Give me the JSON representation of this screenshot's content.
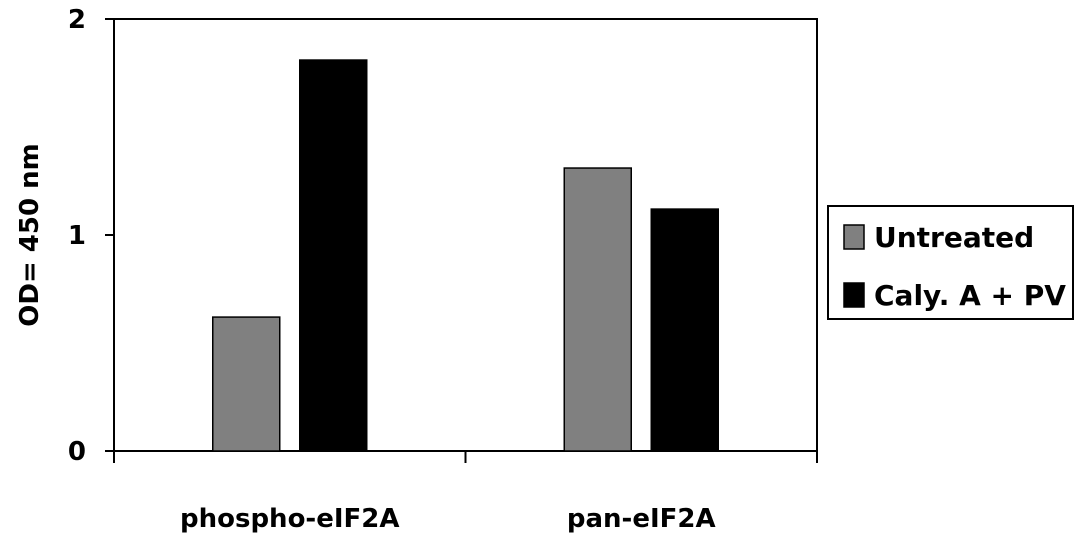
{
  "chart_data": {
    "type": "bar",
    "categories": [
      "phospho-eIF2A",
      "pan-eIF2A"
    ],
    "series": [
      {
        "name": "Untreated",
        "values": [
          0.62,
          1.31
        ],
        "color": "#808080"
      },
      {
        "name": "Caly. A + PV",
        "values": [
          1.81,
          1.12
        ],
        "color": "#000000"
      }
    ],
    "ylabel": "OD= 450 nm",
    "xlabel": "",
    "ylim": [
      0,
      2
    ],
    "yticks": [
      "0",
      "1",
      "2"
    ],
    "grid": false,
    "legend_position": "right"
  }
}
